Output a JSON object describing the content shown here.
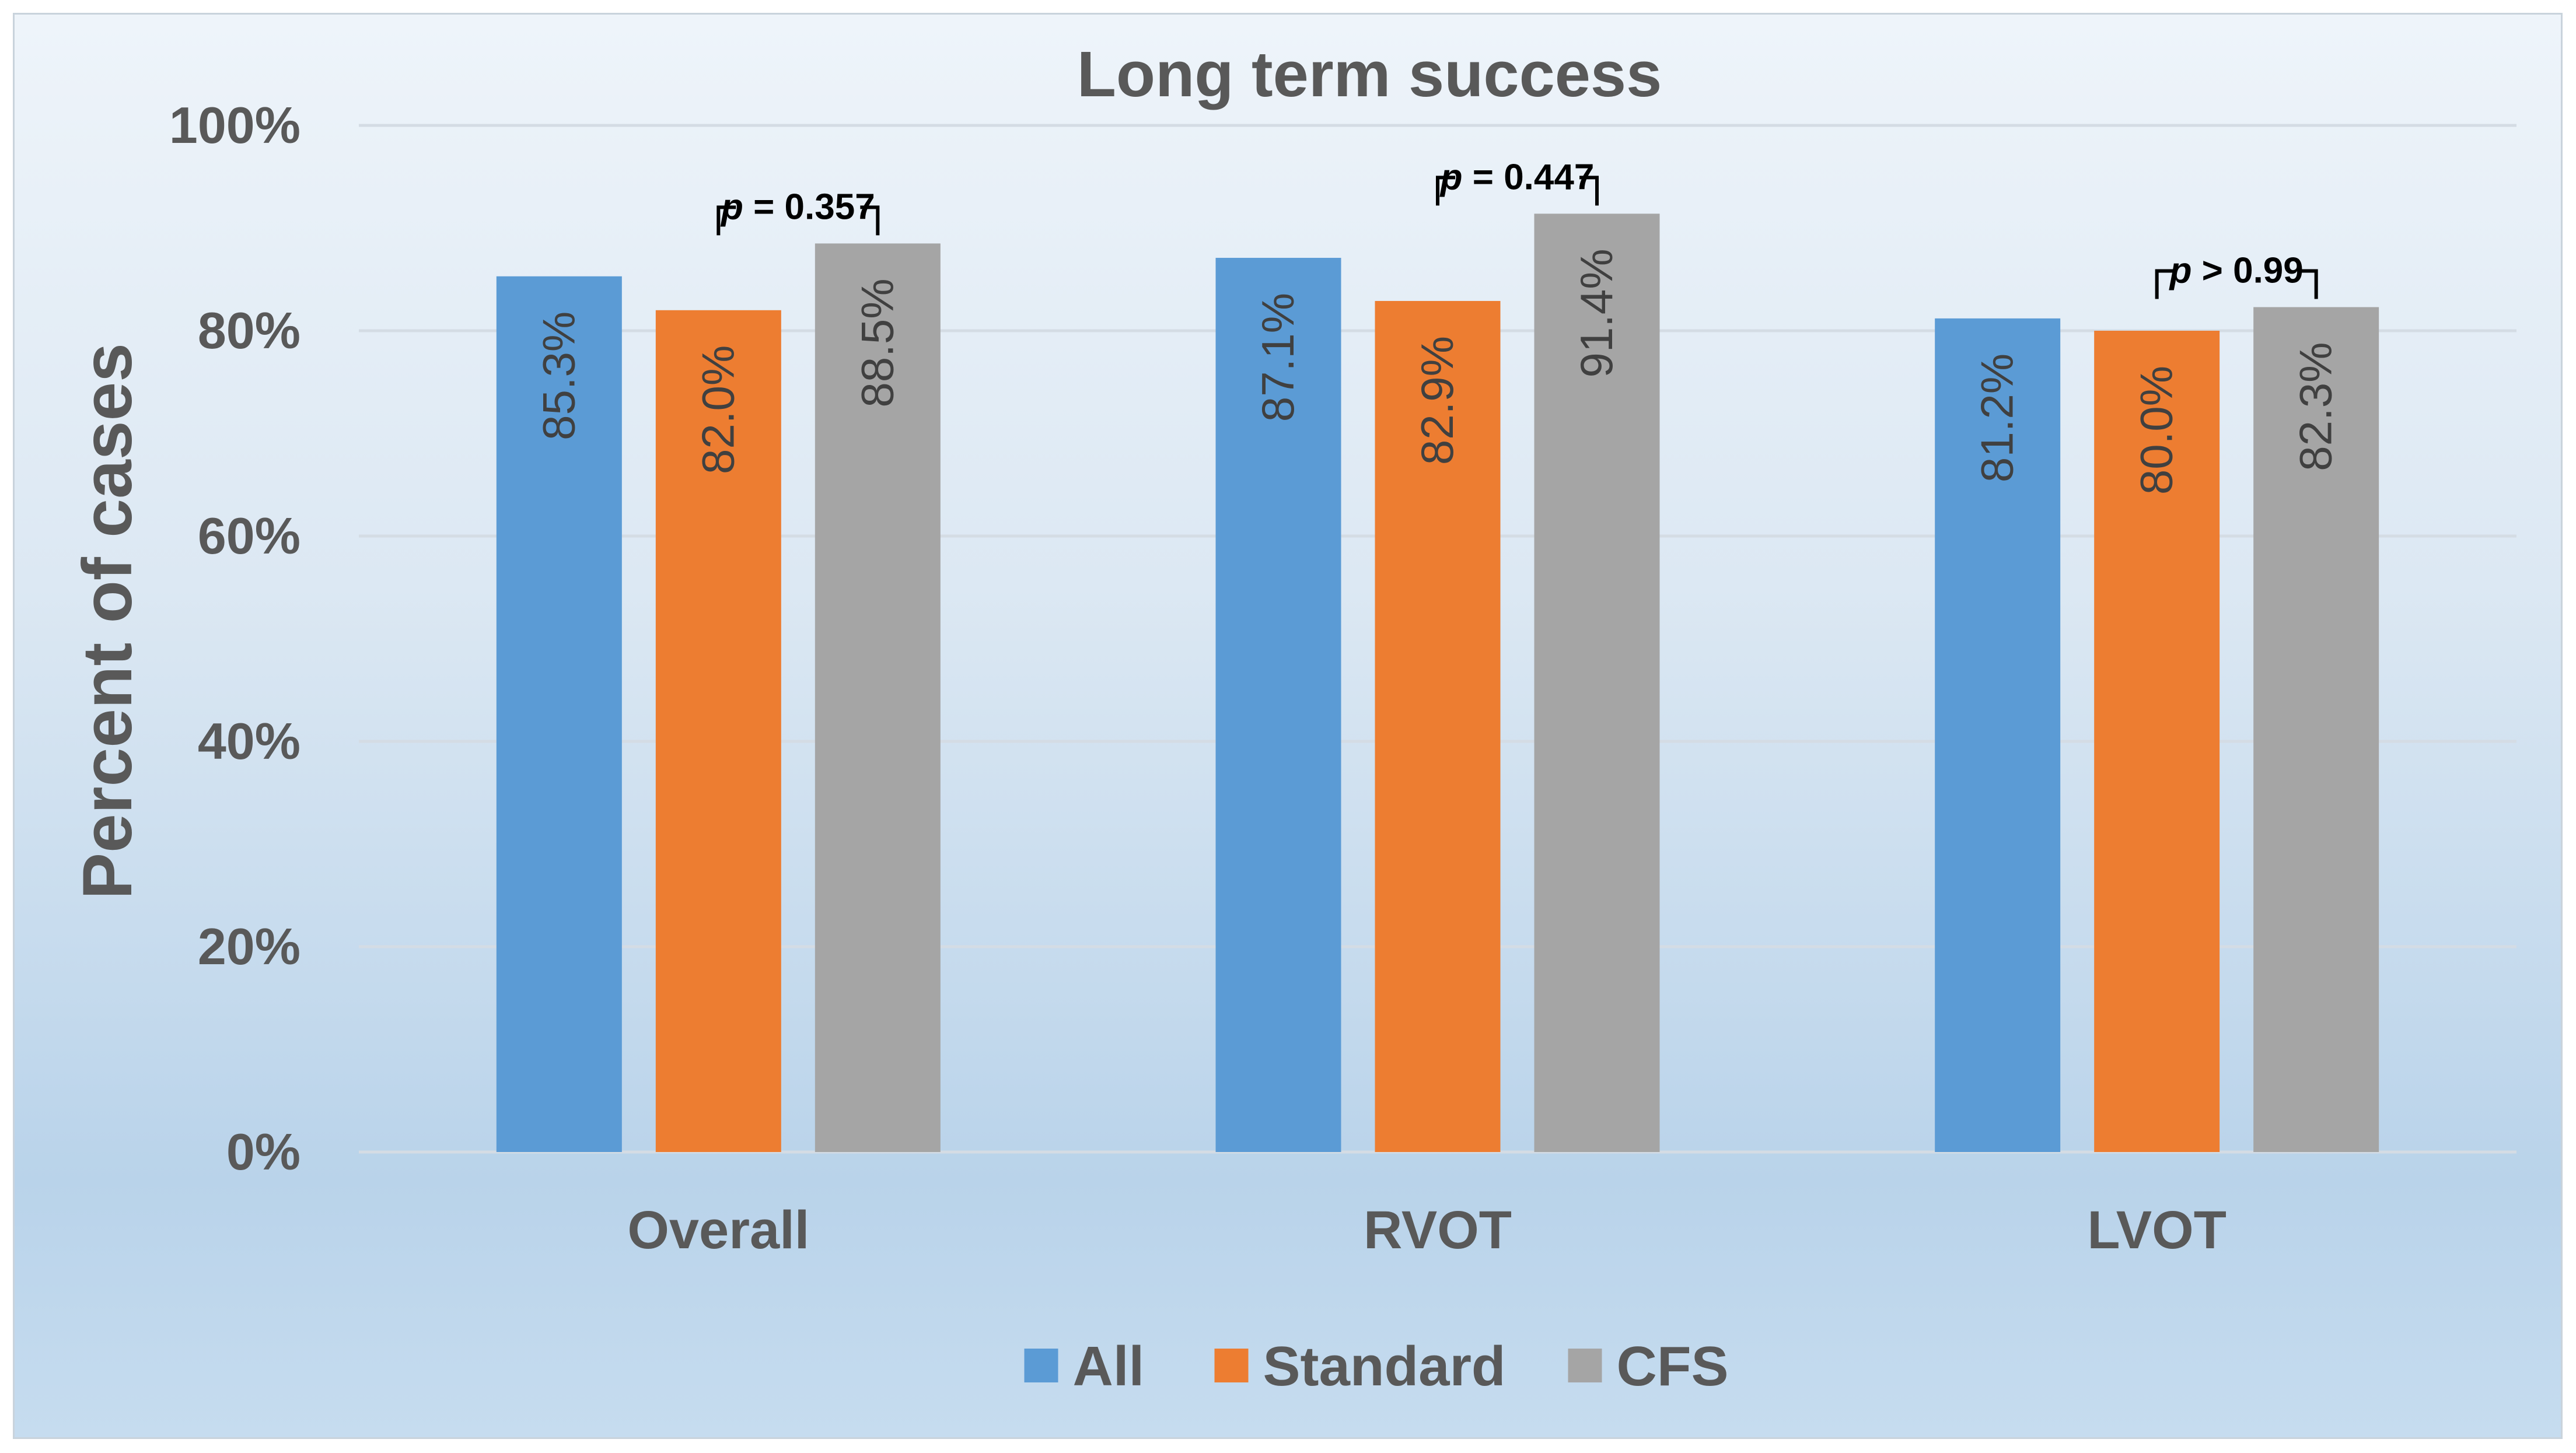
{
  "chart_data": {
    "type": "bar",
    "title": "Long term success",
    "ylabel": "Percent of cases",
    "xlabel": "",
    "ylim": [
      0,
      100
    ],
    "y_ticks": [
      "0%",
      "20%",
      "40%",
      "60%",
      "80%",
      "100%"
    ],
    "categories": [
      "Overall",
      "RVOT",
      "LVOT"
    ],
    "series": [
      {
        "name": "All",
        "values": [
          85.3,
          87.1,
          81.2
        ],
        "labels": [
          "85.3%",
          "87.1%",
          "81.2%"
        ],
        "color": "#5b9bd5"
      },
      {
        "name": "Standard",
        "values": [
          82.0,
          82.9,
          80.0
        ],
        "labels": [
          "82.0%",
          "82.9%",
          "80.0%"
        ],
        "color": "#ed7d31"
      },
      {
        "name": "CFS",
        "values": [
          88.5,
          91.4,
          82.3
        ],
        "labels": [
          "88.5%",
          "91.4%",
          "82.3%"
        ],
        "color": "#a5a5a5"
      }
    ],
    "annotations": [
      {
        "category": "Overall",
        "prefix": "p",
        "text": " = 0.357"
      },
      {
        "category": "RVOT",
        "prefix": "p",
        "text": " = 0.447"
      },
      {
        "category": "LVOT",
        "prefix": "p",
        "text": " > 0.99"
      }
    ],
    "grid": true,
    "legend_position": "bottom"
  }
}
